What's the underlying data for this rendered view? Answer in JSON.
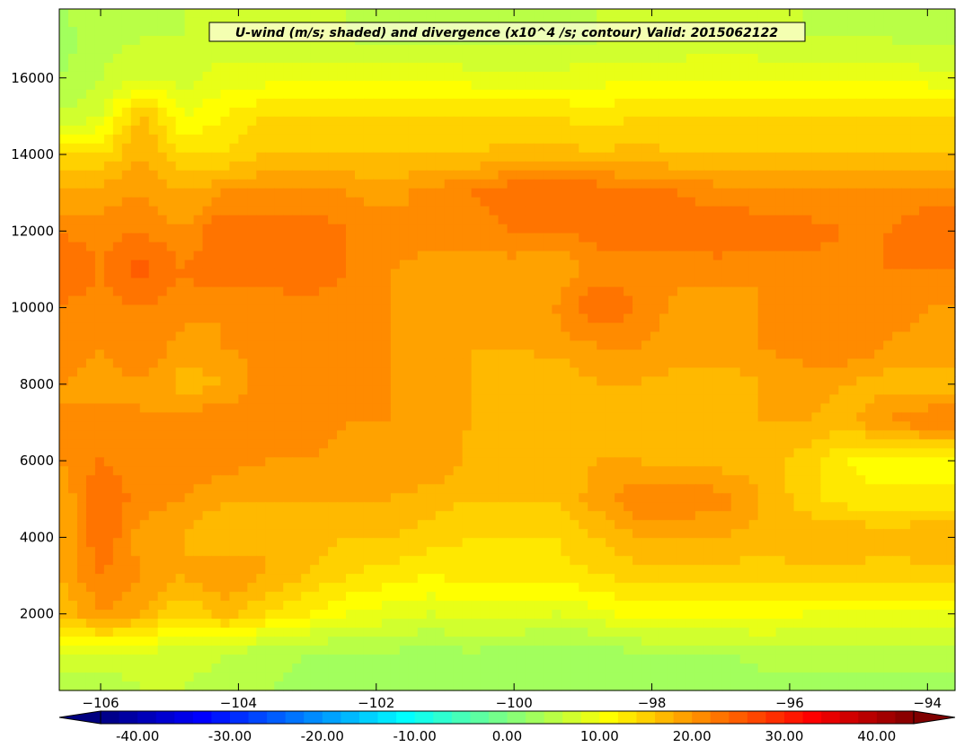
{
  "chart_data": {
    "type": "heatmap",
    "title": "U-wind (m/s; shaded) and divergence (x10^4 /s; contour) Valid: 2015062122",
    "xlabel": "",
    "ylabel": "",
    "x_ticks": [
      "−106",
      "−104",
      "−102",
      "−100",
      "−98",
      "−96",
      "−94"
    ],
    "x_tick_values": [
      -106,
      -104,
      -102,
      -100,
      -98,
      -96,
      -94
    ],
    "y_ticks": [
      "2000",
      "4000",
      "6000",
      "8000",
      "10000",
      "12000",
      "14000",
      "16000"
    ],
    "y_tick_values": [
      2000,
      4000,
      6000,
      8000,
      10000,
      12000,
      14000,
      16000
    ],
    "xlim": [
      -106.6,
      -93.6
    ],
    "ylim": [
      0,
      17800
    ],
    "colorbar": {
      "ticks": [
        "-40.00",
        "-30.00",
        "-20.00",
        "-10.00",
        "0.00",
        "10.00",
        "20.00",
        "30.00",
        "40.00"
      ],
      "tick_values": [
        -40,
        -30,
        -20,
        -10,
        0,
        10,
        20,
        30,
        40
      ],
      "range": [
        -44,
        44
      ],
      "step": 2,
      "extend": "both",
      "colormap": "jet"
    },
    "grid": false,
    "y_levels": [
      0,
      1000,
      2000,
      3000,
      4000,
      5000,
      6000,
      7000,
      8000,
      9000,
      10000,
      11000,
      12000,
      13000,
      14000,
      15000,
      16000,
      17000,
      17800
    ],
    "x_lons": [
      -106.6,
      -106.0,
      -105.4,
      -104.8,
      -104.2,
      -103.6,
      -103.0,
      -102.4,
      -101.8,
      -101.2,
      -100.6,
      -100.0,
      -99.4,
      -98.8,
      -98.2,
      -97.6,
      -97.0,
      -96.4,
      -95.8,
      -95.2,
      -94.6,
      -94.0,
      -93.6
    ],
    "values": [
      [
        4,
        4,
        6,
        6,
        5,
        4,
        3,
        3,
        2,
        2,
        2,
        2,
        2,
        2,
        2,
        2,
        2,
        3,
        3,
        3,
        3,
        3,
        3
      ],
      [
        8,
        8,
        8,
        7,
        6,
        5,
        4,
        4,
        4,
        3,
        4,
        3,
        3,
        3,
        4,
        4,
        4,
        5,
        5,
        5,
        5,
        5,
        5
      ],
      [
        16,
        20,
        18,
        14,
        17,
        14,
        12,
        10,
        9,
        8,
        9,
        9,
        8,
        9,
        11,
        11,
        11,
        11,
        10,
        10,
        10,
        10,
        10
      ],
      [
        18,
        22,
        20,
        18,
        20,
        18,
        16,
        14,
        13,
        12,
        13,
        13,
        13,
        14,
        15,
        15,
        15,
        15,
        15,
        15,
        15,
        15,
        15
      ],
      [
        18,
        24,
        19,
        18,
        16,
        18,
        17,
        16,
        16,
        15,
        14,
        14,
        14,
        16,
        18,
        18,
        18,
        17,
        18,
        18,
        17,
        18,
        18
      ],
      [
        18,
        24,
        21,
        20,
        18,
        18,
        18,
        18,
        18,
        17,
        16,
        16,
        16,
        19,
        22,
        22,
        21,
        18,
        15,
        13,
        13,
        13,
        13
      ],
      [
        20,
        22,
        21,
        22,
        21,
        20,
        20,
        19,
        19,
        20,
        17,
        16,
        16,
        18,
        18,
        17,
        17,
        17,
        15,
        12,
        10,
        11,
        11
      ],
      [
        20,
        21,
        20,
        21,
        22,
        21,
        21,
        20,
        20,
        19,
        18,
        16,
        16,
        17,
        17,
        17,
        17,
        18,
        18,
        17,
        20,
        22,
        22
      ],
      [
        20,
        19,
        20,
        17,
        18,
        21,
        21,
        20,
        20,
        19,
        18,
        17,
        16,
        18,
        18,
        17,
        17,
        18,
        19,
        18,
        17,
        17,
        17
      ],
      [
        22,
        20,
        22,
        19,
        20,
        21,
        21,
        21,
        20,
        19,
        18,
        18,
        19,
        20,
        20,
        19,
        19,
        20,
        21,
        22,
        20,
        19,
        19
      ],
      [
        22,
        21,
        22,
        21,
        20,
        21,
        21,
        21,
        20,
        19,
        18,
        18,
        20,
        24,
        22,
        19,
        19,
        20,
        20,
        21,
        21,
        20,
        20
      ],
      [
        24,
        22,
        25,
        22,
        24,
        23,
        24,
        22,
        20,
        19,
        19,
        19,
        18,
        21,
        21,
        21,
        21,
        20,
        21,
        21,
        22,
        22,
        22
      ],
      [
        22,
        21,
        22,
        20,
        24,
        23,
        23,
        22,
        21,
        21,
        21,
        22,
        22,
        23,
        23,
        23,
        24,
        24,
        23,
        22,
        22,
        24,
        24
      ],
      [
        18,
        19,
        20,
        18,
        20,
        20,
        21,
        20,
        19,
        21,
        22,
        24,
        24,
        24,
        22,
        22,
        21,
        20,
        20,
        20,
        20,
        21,
        21
      ],
      [
        14,
        14,
        18,
        14,
        14,
        16,
        16,
        16,
        16,
        16,
        16,
        17,
        17,
        16,
        17,
        16,
        16,
        16,
        16,
        16,
        16,
        16,
        16
      ],
      [
        6,
        8,
        17,
        10,
        12,
        14,
        14,
        14,
        14,
        14,
        14,
        14,
        14,
        13,
        14,
        14,
        14,
        14,
        14,
        14,
        14,
        14,
        14
      ],
      [
        4,
        6,
        8,
        7,
        9,
        9,
        10,
        10,
        10,
        10,
        9,
        9,
        9,
        9,
        10,
        10,
        10,
        10,
        10,
        10,
        10,
        9,
        9
      ],
      [
        3,
        5,
        6,
        6,
        7,
        7,
        6,
        6,
        5,
        5,
        5,
        5,
        5,
        6,
        6,
        6,
        7,
        6,
        6,
        6,
        6,
        5,
        5
      ],
      [
        4,
        5,
        5,
        6,
        7,
        7,
        6,
        6,
        5,
        5,
        5,
        5,
        5,
        6,
        6,
        6,
        6,
        6,
        6,
        5,
        5,
        5,
        5
      ]
    ]
  }
}
